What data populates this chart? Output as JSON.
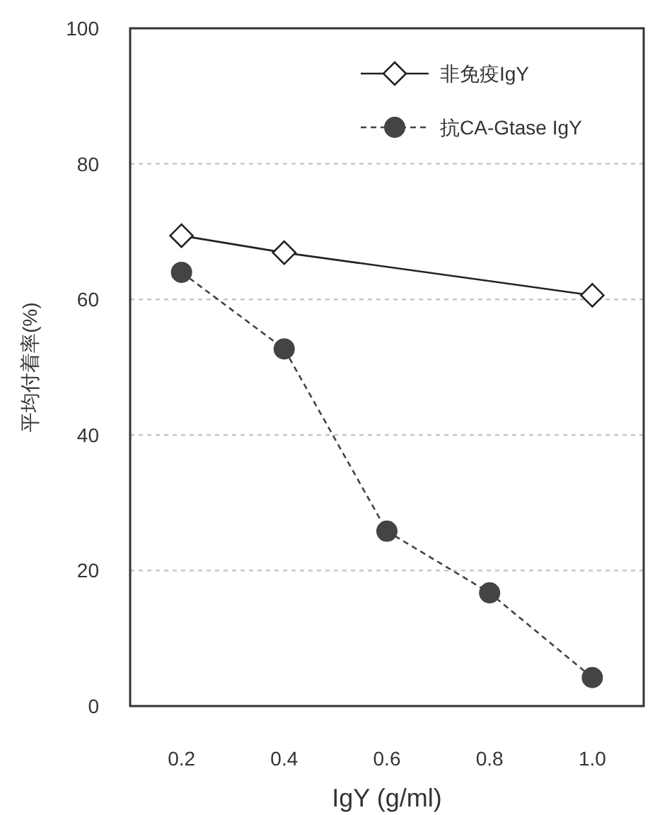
{
  "chart_data": {
    "type": "line",
    "xlabel": "IgY (g/ml)",
    "ylabel": "平均付着率(%)",
    "xlim": [
      0.1,
      1.1
    ],
    "xticks": [
      {
        "value": 0.2,
        "label": "0.2"
      },
      {
        "value": 0.4,
        "label": "0.4"
      },
      {
        "value": 0.6,
        "label": "0.6"
      },
      {
        "value": 0.8,
        "label": "0.8"
      },
      {
        "value": 1.0,
        "label": "1.0"
      }
    ],
    "ylim": [
      0,
      100
    ],
    "yticks": [
      0,
      20,
      40,
      60,
      80,
      100
    ],
    "grid": "y",
    "legend": "top right",
    "series": [
      {
        "name": "非免疫IgY",
        "color": "#222222",
        "marker": "diamond",
        "line_style": "solid",
        "x": [
          0.2,
          0.4,
          1.0
        ],
        "values": [
          69.4,
          66.9,
          60.6
        ]
      },
      {
        "name": "抗CA-Gtase  IgY",
        "color": "#444444",
        "marker": "circle",
        "line_style": "dashed",
        "x": [
          0.2,
          0.4,
          0.6,
          0.8,
          1.0
        ],
        "values": [
          64,
          52.7,
          25.8,
          16.7,
          4.2
        ]
      }
    ]
  }
}
